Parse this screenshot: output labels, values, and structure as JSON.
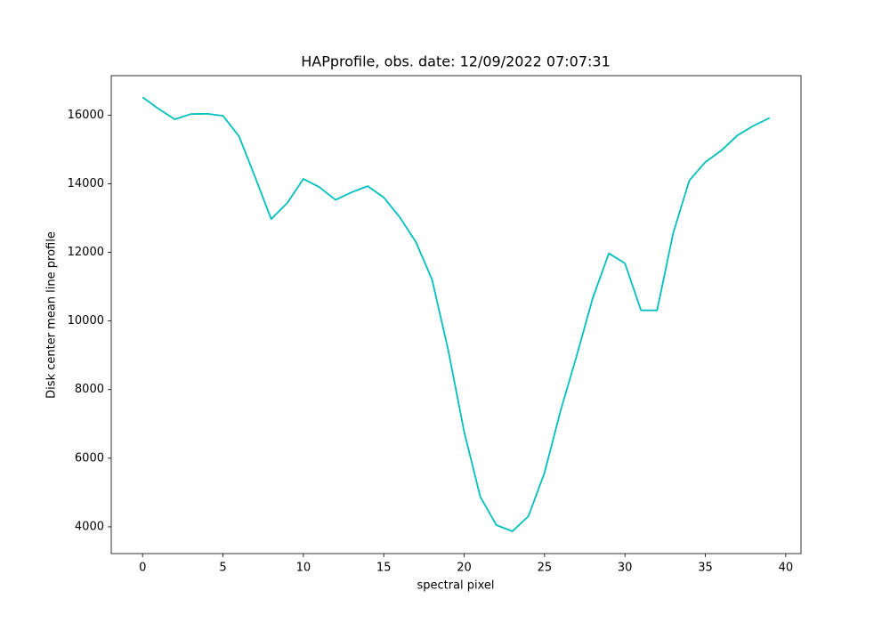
{
  "chart_data": {
    "type": "line",
    "title": "HAPprofile, obs. date: 12/09/2022 07:07:31",
    "xlabel": "spectral pixel",
    "ylabel": "Disk center mean line profile",
    "x": [
      0,
      1,
      2,
      3,
      4,
      5,
      6,
      7,
      8,
      9,
      10,
      11,
      12,
      13,
      14,
      15,
      16,
      17,
      18,
      19,
      20,
      21,
      22,
      23,
      24,
      25,
      26,
      27,
      28,
      29,
      30,
      31,
      32,
      33,
      34,
      35,
      36,
      37,
      38,
      39
    ],
    "series": [
      {
        "color": "#00bfbf",
        "values": [
          16520,
          16180,
          15880,
          16030,
          16040,
          15980,
          15380,
          14190,
          12970,
          13440,
          14140,
          13900,
          13530,
          13750,
          13930,
          13600,
          13020,
          12300,
          11210,
          9170,
          6770,
          4880,
          4050,
          3870,
          4310,
          5580,
          7390,
          8990,
          10670,
          11970,
          11680,
          10310,
          10310,
          12560,
          14090,
          14630,
          14970,
          15410,
          15690,
          15920
        ]
      }
    ],
    "xlim": [
      -1.95,
      40.95
    ],
    "ylim": [
      3220,
      17150
    ],
    "xticks": [
      0,
      5,
      10,
      15,
      20,
      25,
      30,
      35,
      40
    ],
    "yticks": [
      4000,
      6000,
      8000,
      10000,
      12000,
      14000,
      16000
    ]
  }
}
